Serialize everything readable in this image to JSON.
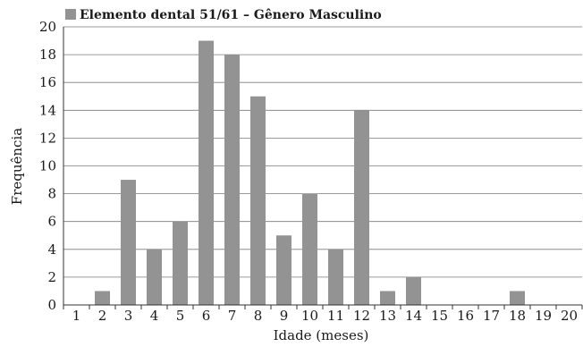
{
  "chart_data": {
    "type": "bar",
    "legend": "Elemento dental 51/61 – Gênero Masculino",
    "legend_position": "top-left",
    "xlabel": "Idade (meses)",
    "ylabel": "Frequência",
    "categories": [
      "1",
      "2",
      "3",
      "4",
      "5",
      "6",
      "7",
      "8",
      "9",
      "10",
      "11",
      "12",
      "13",
      "14",
      "15",
      "16",
      "17",
      "18",
      "19",
      "20"
    ],
    "series": [
      {
        "name": "Elemento dental 51/61 – Gênero Masculino",
        "values": [
          0,
          1,
          9,
          4,
          6,
          19,
          18,
          15,
          5,
          8,
          4,
          14,
          1,
          2,
          0,
          0,
          0,
          1,
          0,
          0
        ]
      }
    ],
    "ylim": [
      0,
      20
    ],
    "yticks": [
      "0",
      "2",
      "4",
      "6",
      "8",
      "10",
      "12",
      "14",
      "16",
      "18",
      "20"
    ],
    "grid": "horizontal",
    "bar_color": "#939393",
    "grid_color": "#7a7a7a",
    "axis_color": "#333333"
  }
}
